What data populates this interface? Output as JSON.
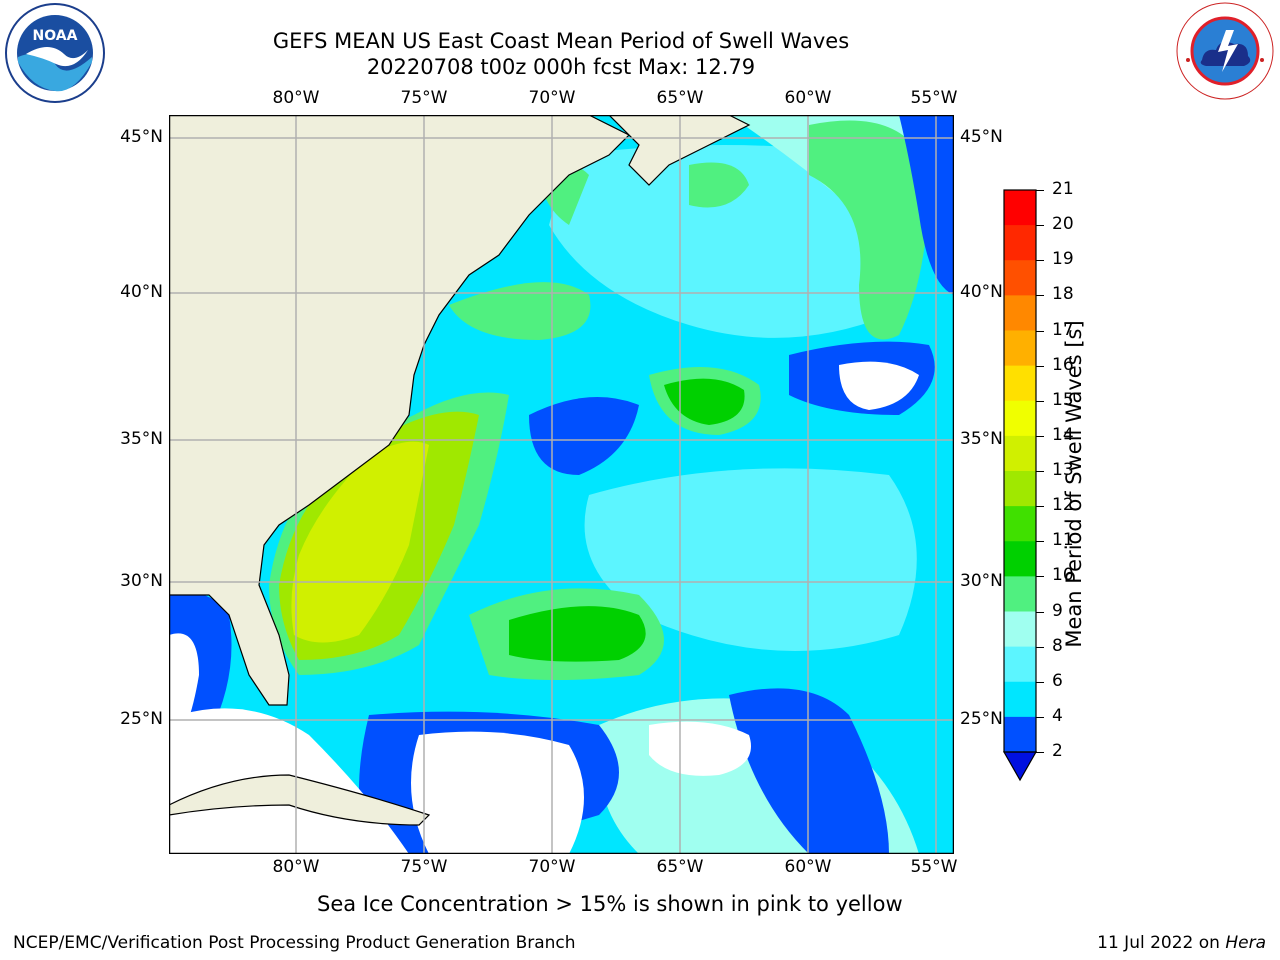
{
  "title_line1": "GEFS MEAN US East Coast Mean Period of Swell Waves",
  "title_line2": "20220708 t00z 000h fcst   Max: 12.79",
  "lon_ticks": [
    "80°W",
    "75°W",
    "70°W",
    "65°W",
    "60°W",
    "55°W"
  ],
  "lat_ticks": [
    "45°N",
    "40°N",
    "35°N",
    "30°N",
    "25°N"
  ],
  "colorbar": {
    "label": "Mean Period of Swell Waves [s]",
    "ticks": [
      "21",
      "20",
      "19",
      "18",
      "17",
      "16",
      "15",
      "14",
      "13",
      "12",
      "11",
      "10",
      "9",
      "8",
      "6",
      "4",
      "2"
    ],
    "colors": {
      "c2_4": "#0050ff",
      "c4_6": "#00e6ff",
      "c6_8": "#5cf5ff",
      "c8_9": "#a0fff0",
      "c9_10": "#50f080",
      "c10_11": "#00d000",
      "c11_12": "#40e000",
      "c12_13": "#a0e800",
      "c13_14": "#d0f000",
      "c14_15": "#f0ff00",
      "c15_16": "#ffe000",
      "c16_17": "#ffb000",
      "c17_18": "#ff8800",
      "c18_19": "#ff5000",
      "c19_20": "#ff2800",
      "c20_21": "#ff0000",
      "under": "#0010e0",
      "land": "#efefdc"
    }
  },
  "ice_note": "Sea Ice Concentration > 15% is shown in pink to yellow",
  "footer_left": "NCEP/EMC/Verification Post Processing Product Generation Branch",
  "footer_right_date": "11 Jul 2022 on ",
  "footer_right_machine": "Hera",
  "logos": {
    "noaa_text": "NOAA",
    "noaa_ring": "NATIONAL OCEANIC AND ATMOSPHERIC ADMINISTRATION",
    "nws_ring": "NATIONAL WEATHER SERVICE"
  }
}
